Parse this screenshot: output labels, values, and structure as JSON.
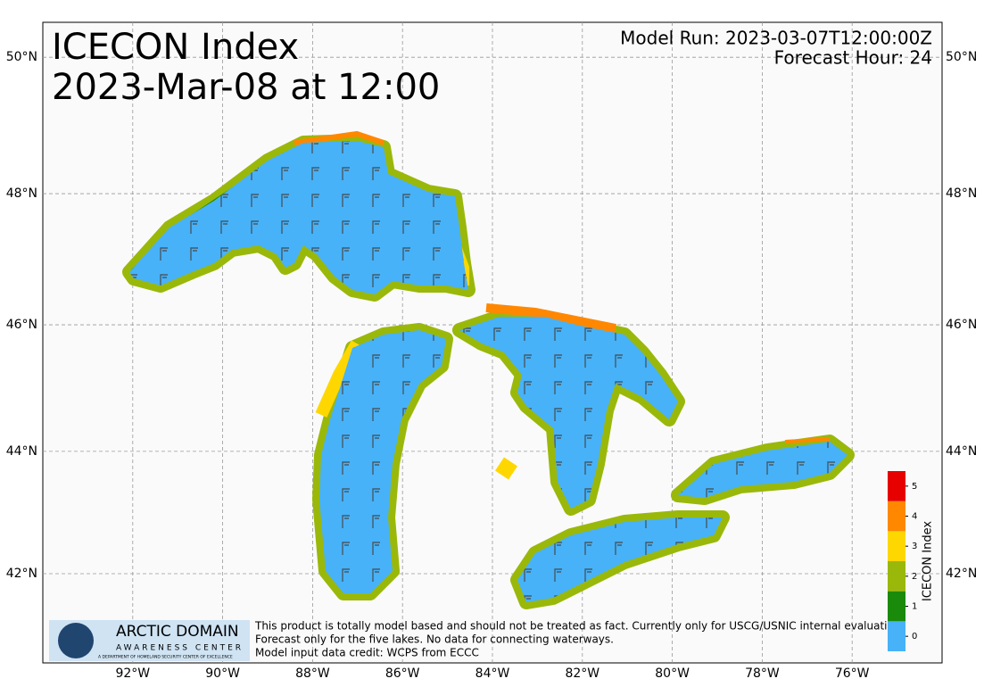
{
  "title": "ICECON Index",
  "subtitle": "2023-Mar-08 at 12:00",
  "model_run": "Model Run: 2023-03-07T12:00:00Z",
  "forecast_hour": "Forecast Hour: 24",
  "map": {
    "projection": "mercator",
    "xlim": [
      -94,
      -74
    ],
    "ylim": [
      40.5,
      50.5
    ],
    "grid": true,
    "xticks": [
      {
        "value": -92,
        "label": "92°W"
      },
      {
        "value": -90,
        "label": "90°W"
      },
      {
        "value": -88,
        "label": "88°W"
      },
      {
        "value": -86,
        "label": "86°W"
      },
      {
        "value": -84,
        "label": "84°W"
      },
      {
        "value": -82,
        "label": "82°W"
      },
      {
        "value": -80,
        "label": "80°W"
      },
      {
        "value": -78,
        "label": "78°W"
      },
      {
        "value": -76,
        "label": "76°W"
      }
    ],
    "yticks": [
      {
        "value": 42,
        "label": "42°N"
      },
      {
        "value": 44,
        "label": "44°N"
      },
      {
        "value": 46,
        "label": "46°N"
      },
      {
        "value": 48,
        "label": "48°N"
      },
      {
        "value": 50,
        "label": "50°N"
      }
    ]
  },
  "colorbar": {
    "label": "ICECON Index",
    "levels": [
      0,
      1,
      2,
      3,
      4,
      5
    ],
    "colors": [
      "#47b2f8",
      "#1a8a0a",
      "#9ab80a",
      "#ffd700",
      "#ff8800",
      "#e60000"
    ]
  },
  "disclaimer": [
    "This product is totally model based and should not be treated as fact. Currently only for USCG/USNIC internal evaluation.",
    "Forecast only for the five lakes. No data for connecting waterways.",
    "Model input data credit: WCPS from ECCC"
  ],
  "logo": {
    "name": "ARCTIC DOMAIN",
    "tagline": "AWARENESS CENTER",
    "caption": "A DEPARTMENT OF HOMELAND SECURITY CENTER OF EXCELLENCE"
  }
}
